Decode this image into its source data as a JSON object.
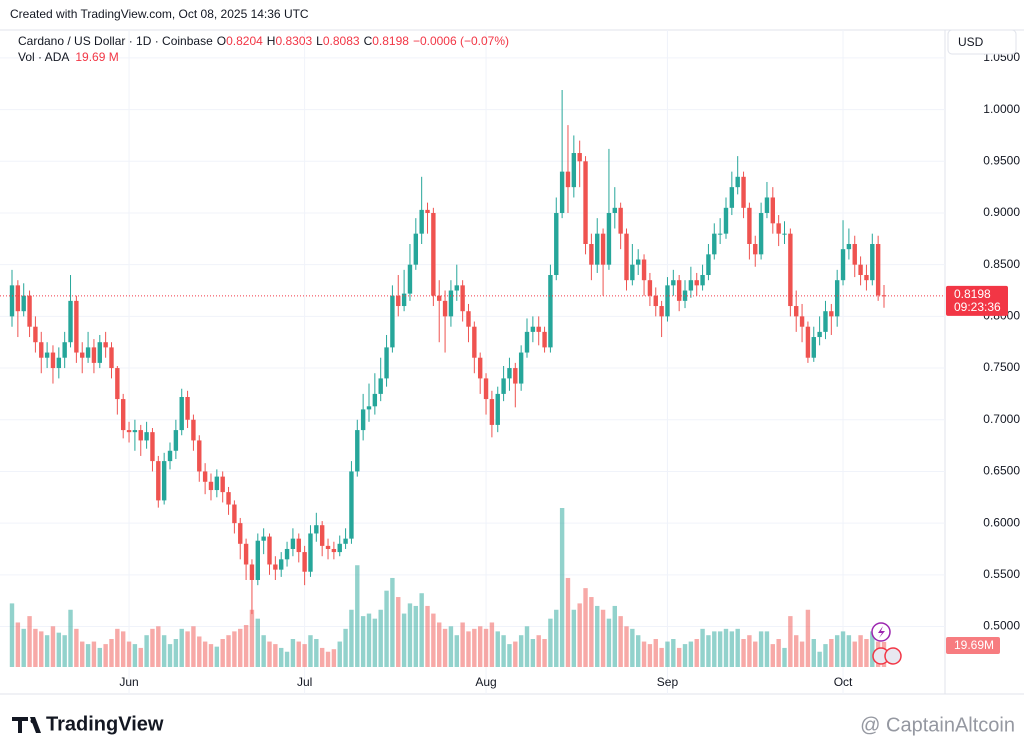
{
  "header": {
    "created": "Created with TradingView.com, Oct 08, 2025 14:36 UTC",
    "symbol": "Cardano / US Dollar · 1D · Coinbase",
    "o": "O",
    "h": "H",
    "l": "L",
    "c": "C",
    "change": "−0.0006 (−0.07%)",
    "vol": "Vol · ADA",
    "vol_value": "19.69 M",
    "currency": "USD",
    "brand": "TradingView",
    "watermark": "@ CaptainAltcoin"
  },
  "chart_data": {
    "type": "candlestick",
    "xticks": [
      {
        "value": 20,
        "label": "Jun"
      },
      {
        "value": 50,
        "label": "Jul"
      },
      {
        "value": 81,
        "label": "Aug"
      },
      {
        "value": 112,
        "label": "Sep"
      },
      {
        "value": 142,
        "label": "Oct"
      }
    ],
    "xlim": [
      0,
      149
    ],
    "ylim": [
      0.456,
      1.077
    ],
    "yticks": [
      {
        "value": 0.5,
        "label": "0.5000"
      },
      {
        "value": 0.55,
        "label": "0.5500"
      },
      {
        "value": 0.6,
        "label": "0.6000"
      },
      {
        "value": 0.65,
        "label": "0.6500"
      },
      {
        "value": 0.7,
        "label": "0.7000"
      },
      {
        "value": 0.75,
        "label": "0.7500"
      },
      {
        "value": 0.8,
        "label": "0.8000"
      },
      {
        "value": 0.85,
        "label": "0.8500"
      },
      {
        "value": 0.9,
        "label": "0.9000"
      },
      {
        "value": 0.95,
        "label": "0.9500"
      },
      {
        "value": 1.0,
        "label": "1.0000"
      },
      {
        "value": 1.05,
        "label": "1.0500"
      }
    ],
    "vlim": [
      0,
      125
    ],
    "grid": true,
    "up_color": "#26a69a",
    "down_color": "#ef5350",
    "countdown": "09:23:36",
    "volume_label": "19.69M",
    "open": [
      0.8,
      0.83,
      0.805,
      0.82,
      0.79,
      0.775,
      0.76,
      0.765,
      0.75,
      0.76,
      0.775,
      0.815,
      0.765,
      0.76,
      0.77,
      0.755,
      0.775,
      0.77,
      0.75,
      0.72,
      0.69,
      0.688,
      0.69,
      0.68,
      0.688,
      0.66,
      0.622,
      0.66,
      0.67,
      0.69,
      0.722,
      0.7,
      0.68,
      0.65,
      0.64,
      0.632,
      0.645,
      0.63,
      0.618,
      0.6,
      0.58,
      0.56,
      0.545,
      0.583,
      0.587,
      0.56,
      0.555,
      0.565,
      0.575,
      0.585,
      0.572,
      0.553,
      0.59,
      0.598,
      0.578,
      0.575,
      0.572,
      0.58,
      0.585,
      0.65,
      0.69,
      0.71,
      0.713,
      0.725,
      0.74,
      0.77,
      0.82,
      0.81,
      0.822,
      0.85,
      0.88,
      0.903,
      0.9,
      0.82,
      0.815,
      0.8,
      0.825,
      0.83,
      0.805,
      0.79,
      0.76,
      0.74,
      0.72,
      0.695,
      0.725,
      0.74,
      0.75,
      0.735,
      0.765,
      0.785,
      0.79,
      0.785,
      0.77,
      0.84,
      0.9,
      0.94,
      0.925,
      0.958,
      0.95,
      0.87,
      0.85,
      0.88,
      0.85,
      0.9,
      0.905,
      0.88,
      0.835,
      0.85,
      0.855,
      0.835,
      0.82,
      0.81,
      0.8,
      0.83,
      0.835,
      0.815,
      0.825,
      0.835,
      0.83,
      0.84,
      0.86,
      0.88,
      0.88,
      0.905,
      0.925,
      0.935,
      0.905,
      0.87,
      0.86,
      0.9,
      0.915,
      0.89,
      0.88,
      0.88,
      0.81,
      0.8,
      0.79,
      0.76,
      0.78,
      0.785,
      0.805,
      0.8,
      0.835,
      0.865,
      0.87,
      0.85,
      0.84,
      0.835,
      0.87,
      0.8204
    ],
    "high": [
      0.845,
      0.835,
      0.832,
      0.825,
      0.8,
      0.785,
      0.775,
      0.772,
      0.77,
      0.785,
      0.84,
      0.82,
      0.775,
      0.785,
      0.778,
      0.782,
      0.785,
      0.775,
      0.752,
      0.725,
      0.698,
      0.7,
      0.695,
      0.698,
      0.692,
      0.665,
      0.668,
      0.678,
      0.7,
      0.73,
      0.728,
      0.705,
      0.685,
      0.658,
      0.648,
      0.652,
      0.65,
      0.635,
      0.622,
      0.605,
      0.585,
      0.565,
      0.59,
      0.595,
      0.59,
      0.568,
      0.572,
      0.582,
      0.595,
      0.59,
      0.578,
      0.598,
      0.61,
      0.602,
      0.585,
      0.582,
      0.588,
      0.595,
      0.66,
      0.7,
      0.725,
      0.735,
      0.745,
      0.76,
      0.782,
      0.83,
      0.84,
      0.845,
      0.87,
      0.895,
      0.935,
      0.91,
      0.905,
      0.835,
      0.825,
      0.835,
      0.85,
      0.835,
      0.812,
      0.795,
      0.765,
      0.745,
      0.728,
      0.732,
      0.752,
      0.76,
      0.755,
      0.772,
      0.798,
      0.8,
      0.8,
      0.79,
      0.85,
      0.915,
      1.019,
      0.985,
      0.975,
      0.97,
      0.955,
      0.88,
      0.895,
      0.885,
      0.962,
      0.925,
      0.91,
      0.885,
      0.87,
      0.865,
      0.86,
      0.842,
      0.828,
      0.815,
      0.838,
      0.845,
      0.84,
      0.835,
      0.848,
      0.842,
      0.85,
      0.87,
      0.89,
      0.895,
      0.915,
      0.94,
      0.955,
      0.94,
      0.91,
      0.878,
      0.91,
      0.93,
      0.925,
      0.898,
      0.892,
      0.885,
      0.825,
      0.812,
      0.795,
      0.79,
      0.8,
      0.815,
      0.812,
      0.845,
      0.893,
      0.885,
      0.878,
      0.858,
      0.85,
      0.88,
      0.878,
      0.8303
    ],
    "low": [
      0.79,
      0.78,
      0.8,
      0.78,
      0.765,
      0.745,
      0.75,
      0.735,
      0.74,
      0.75,
      0.77,
      0.755,
      0.745,
      0.755,
      0.745,
      0.75,
      0.76,
      0.74,
      0.705,
      0.682,
      0.678,
      0.67,
      0.665,
      0.672,
      0.65,
      0.615,
      0.618,
      0.652,
      0.662,
      0.685,
      0.692,
      0.67,
      0.64,
      0.628,
      0.622,
      0.625,
      0.62,
      0.608,
      0.59,
      0.565,
      0.545,
      0.512,
      0.54,
      0.57,
      0.55,
      0.545,
      0.548,
      0.558,
      0.568,
      0.562,
      0.54,
      0.548,
      0.582,
      0.568,
      0.565,
      0.565,
      0.568,
      0.575,
      0.58,
      0.645,
      0.68,
      0.698,
      0.705,
      0.718,
      0.732,
      0.765,
      0.8,
      0.805,
      0.815,
      0.845,
      0.87,
      0.88,
      0.81,
      0.775,
      0.765,
      0.79,
      0.815,
      0.795,
      0.775,
      0.745,
      0.725,
      0.705,
      0.683,
      0.688,
      0.718,
      0.728,
      0.712,
      0.728,
      0.76,
      0.775,
      0.772,
      0.765,
      0.765,
      0.835,
      0.895,
      0.9,
      0.915,
      0.925,
      0.86,
      0.835,
      0.842,
      0.82,
      0.845,
      0.885,
      0.865,
      0.825,
      0.83,
      0.84,
      0.82,
      0.81,
      0.8,
      0.78,
      0.795,
      0.82,
      0.805,
      0.808,
      0.818,
      0.82,
      0.825,
      0.835,
      0.855,
      0.87,
      0.875,
      0.898,
      0.918,
      0.895,
      0.855,
      0.848,
      0.855,
      0.895,
      0.88,
      0.868,
      0.87,
      0.8,
      0.785,
      0.775,
      0.755,
      0.756,
      0.772,
      0.778,
      0.782,
      0.79,
      0.83,
      0.855,
      0.838,
      0.83,
      0.825,
      0.83,
      0.815,
      0.8083
    ],
    "close": [
      0.83,
      0.805,
      0.82,
      0.79,
      0.775,
      0.76,
      0.765,
      0.75,
      0.76,
      0.775,
      0.815,
      0.765,
      0.76,
      0.77,
      0.755,
      0.775,
      0.77,
      0.75,
      0.72,
      0.69,
      0.688,
      0.69,
      0.68,
      0.688,
      0.66,
      0.622,
      0.66,
      0.67,
      0.69,
      0.722,
      0.7,
      0.68,
      0.65,
      0.64,
      0.632,
      0.645,
      0.63,
      0.618,
      0.6,
      0.58,
      0.56,
      0.545,
      0.583,
      0.587,
      0.56,
      0.555,
      0.565,
      0.575,
      0.585,
      0.572,
      0.553,
      0.59,
      0.598,
      0.578,
      0.575,
      0.572,
      0.58,
      0.585,
      0.65,
      0.69,
      0.71,
      0.713,
      0.725,
      0.74,
      0.77,
      0.82,
      0.81,
      0.822,
      0.85,
      0.88,
      0.903,
      0.9,
      0.82,
      0.815,
      0.8,
      0.825,
      0.83,
      0.805,
      0.79,
      0.76,
      0.74,
      0.72,
      0.695,
      0.725,
      0.74,
      0.75,
      0.735,
      0.765,
      0.785,
      0.79,
      0.785,
      0.77,
      0.84,
      0.9,
      0.94,
      0.925,
      0.958,
      0.95,
      0.87,
      0.85,
      0.88,
      0.85,
      0.9,
      0.905,
      0.88,
      0.835,
      0.85,
      0.855,
      0.835,
      0.82,
      0.81,
      0.8,
      0.83,
      0.835,
      0.815,
      0.825,
      0.835,
      0.83,
      0.84,
      0.86,
      0.88,
      0.88,
      0.905,
      0.925,
      0.935,
      0.905,
      0.87,
      0.86,
      0.9,
      0.915,
      0.89,
      0.88,
      0.88,
      0.81,
      0.8,
      0.79,
      0.76,
      0.78,
      0.785,
      0.805,
      0.8,
      0.835,
      0.865,
      0.87,
      0.85,
      0.84,
      0.835,
      0.87,
      0.8204,
      0.8198
    ],
    "volume": [
      50,
      35,
      30,
      40,
      30,
      28,
      25,
      32,
      27,
      25,
      45,
      30,
      20,
      18,
      20,
      15,
      18,
      22,
      30,
      28,
      20,
      18,
      15,
      25,
      30,
      32,
      25,
      18,
      22,
      30,
      28,
      32,
      24,
      20,
      18,
      16,
      22,
      25,
      28,
      30,
      33,
      45,
      38,
      25,
      20,
      18,
      15,
      12,
      22,
      20,
      18,
      25,
      22,
      15,
      12,
      14,
      20,
      30,
      45,
      80,
      40,
      42,
      38,
      45,
      60,
      70,
      55,
      42,
      50,
      48,
      58,
      48,
      42,
      35,
      30,
      32,
      25,
      35,
      28,
      30,
      32,
      30,
      35,
      28,
      25,
      18,
      20,
      25,
      32,
      22,
      25,
      22,
      38,
      45,
      125,
      70,
      45,
      50,
      62,
      55,
      48,
      45,
      38,
      48,
      40,
      32,
      30,
      25,
      20,
      18,
      22,
      15,
      20,
      22,
      15,
      18,
      20,
      22,
      30,
      25,
      28,
      28,
      30,
      28,
      30,
      22,
      25,
      20,
      28,
      28,
      18,
      22,
      15,
      40,
      25,
      20,
      45,
      22,
      12,
      18,
      22,
      25,
      28,
      25,
      20,
      25,
      22,
      28,
      20,
      19.69
    ]
  }
}
